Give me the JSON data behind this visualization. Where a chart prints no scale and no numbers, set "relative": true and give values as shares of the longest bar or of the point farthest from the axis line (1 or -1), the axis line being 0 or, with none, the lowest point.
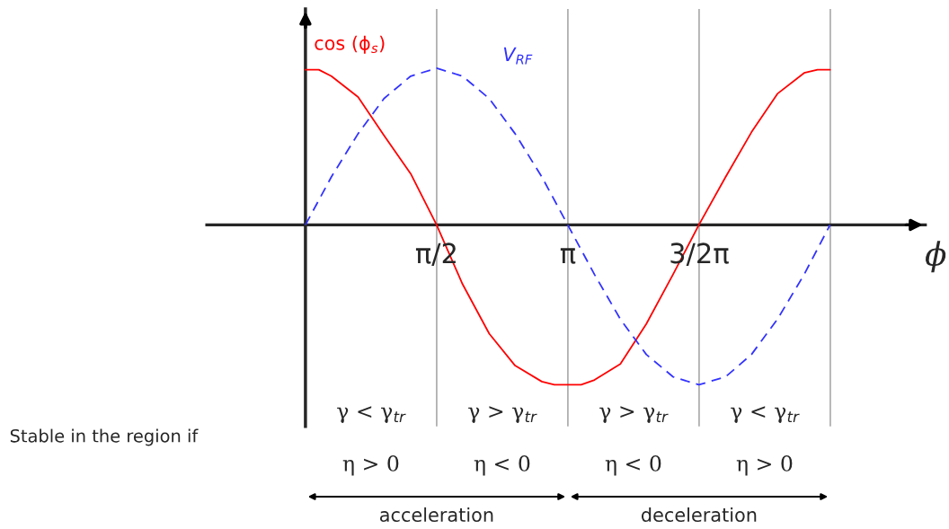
{
  "chart_data": {
    "type": "line",
    "relative": true,
    "xlabel": "ϕ",
    "legend": false,
    "grid": false,
    "marker": "none",
    "xlim": [
      -1.18,
      7.42
    ],
    "xticks": [
      {
        "value": 1.5708,
        "label": "π/2"
      },
      {
        "value": 3.1416,
        "label": "π"
      },
      {
        "value": 4.7124,
        "label": "3/2π"
      }
    ],
    "series": [
      {
        "name": "cos (ϕ$_{s}$)",
        "color": "#ff0000",
        "line_style": "solid",
        "x": [
          0,
          0.16,
          0.31,
          0.63,
          0.94,
          1.26,
          1.57,
          1.88,
          2.2,
          2.51,
          2.83,
          2.98,
          3.3,
          3.46,
          3.77,
          4.08,
          4.4,
          4.71,
          5.03,
          5.34,
          5.65,
          5.97,
          6.13,
          6.28
        ],
        "values": [
          0.97,
          0.97,
          0.93,
          0.8,
          0.56,
          0.32,
          0,
          -0.37,
          -0.68,
          -0.88,
          -0.98,
          -1,
          -1,
          -0.97,
          -0.87,
          -0.62,
          -0.31,
          0,
          0.3,
          0.58,
          0.82,
          0.95,
          0.97,
          0.97
        ]
      },
      {
        "name": "V$_{RF}$",
        "color": "#3333ff",
        "line_style": "dashed",
        "x": [
          0,
          0.31,
          0.63,
          0.94,
          1.26,
          1.57,
          1.88,
          2.2,
          2.51,
          2.83,
          3.14,
          3.46,
          3.77,
          4.08,
          4.4,
          4.71,
          5.03,
          5.34,
          5.65,
          5.97,
          6.28
        ],
        "values": [
          0,
          0.3,
          0.57,
          0.79,
          0.93,
          0.98,
          0.93,
          0.79,
          0.57,
          0.3,
          0,
          -0.31,
          -0.59,
          -0.81,
          -0.95,
          -1,
          -0.95,
          -0.81,
          -0.59,
          -0.31,
          0
        ]
      }
    ],
    "ref_lines": [
      {
        "axis": "x",
        "value": 1.5708,
        "color": "#b0b0b0"
      },
      {
        "axis": "x",
        "value": 3.1416,
        "color": "#b0b0b0"
      },
      {
        "axis": "x",
        "value": 4.7124,
        "color": "#b0b0b0"
      },
      {
        "axis": "x",
        "value": 6.2832,
        "color": "#b0b0b0"
      }
    ],
    "annotations": [
      "Stable in the region if",
      "γ < γ$_{tr}$",
      "γ > γ$_{tr}$",
      "γ > γ$_{tr}$",
      "γ < γ$_{tr}$",
      "η > 0",
      "η < 0",
      "η < 0",
      "η > 0",
      "acceleration",
      "deceleration"
    ]
  }
}
